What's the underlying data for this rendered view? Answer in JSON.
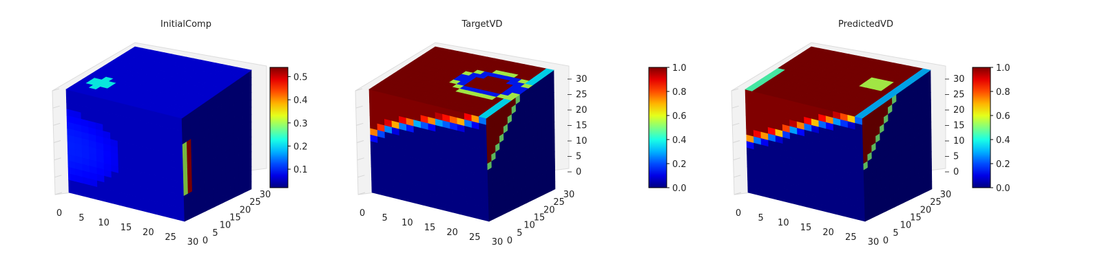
{
  "figure": {
    "background": "#ffffff"
  },
  "chart_data": [
    {
      "type": "heatmap",
      "subtype": "3d-voxel-cube",
      "title": "InitialComp",
      "x_ticks": [
        "0",
        "5",
        "10",
        "15",
        "20",
        "25",
        "30"
      ],
      "y_ticks": [
        "0",
        "5",
        "10",
        "15",
        "20",
        "25",
        "30"
      ],
      "z_ticks": [],
      "xlim": [
        0,
        32
      ],
      "ylim": [
        0,
        32
      ],
      "zlim": [
        0,
        32
      ],
      "grid": true,
      "colormap": "jet",
      "colorbar": {
        "min": 0.02,
        "max": 0.54,
        "ticks": [
          "0.1",
          "0.2",
          "0.3",
          "0.4",
          "0.5"
        ],
        "tick_values": [
          0.1,
          0.2,
          0.3,
          0.4,
          0.5
        ]
      },
      "faces": {
        "front": {
          "base": 0.05,
          "features": [
            {
              "kind": "blob",
              "cx": 0.0,
              "cy": 0.45,
              "rx": 0.45,
              "ry": 0.35,
              "value": 0.1
            }
          ]
        },
        "top": {
          "base": 0.07,
          "features": [
            {
              "kind": "spot",
              "value": 0.22
            }
          ]
        },
        "side": {
          "base": 0.03,
          "features": [
            {
              "kind": "stripe",
              "value": 0.52,
              "z_range": [
                0.25,
                0.72
              ],
              "u_range": [
                0.0,
                0.14
              ]
            }
          ]
        }
      }
    },
    {
      "type": "heatmap",
      "subtype": "3d-voxel-cube",
      "title": "TargetVD",
      "x_ticks": [
        "0",
        "5",
        "10",
        "15",
        "20",
        "25",
        "30"
      ],
      "y_ticks": [
        "0",
        "5",
        "10",
        "15",
        "20",
        "25",
        "30"
      ],
      "z_ticks": [
        "0",
        "5",
        "10",
        "15",
        "20",
        "25",
        "30"
      ],
      "xlim": [
        0,
        32
      ],
      "ylim": [
        0,
        32
      ],
      "zlim": [
        0,
        32
      ],
      "grid": true,
      "colormap": "jet",
      "colorbar": {
        "min": 0.0,
        "max": 1.0,
        "ticks": [
          "0.0",
          "0.2",
          "0.4",
          "0.6",
          "0.8",
          "1.0"
        ],
        "tick_values": [
          0,
          0.2,
          0.4,
          0.6,
          0.8,
          1.0
        ]
      },
      "faces": {
        "front": {
          "base": 0.0,
          "features": [
            {
              "kind": "upper-region",
              "value": 1.0,
              "boundary": [
                0.55,
                0.7,
                0.78,
                0.85,
                0.9,
                1.0
              ]
            }
          ]
        },
        "top": {
          "base": 1.0,
          "features": [
            {
              "kind": "ring",
              "value": 0.15
            }
          ]
        },
        "side": {
          "base": 0.0,
          "features": [
            {
              "kind": "upper-region",
              "value": 1.0
            }
          ]
        }
      }
    },
    {
      "type": "heatmap",
      "subtype": "3d-voxel-cube",
      "title": "PredictedVD",
      "x_ticks": [
        "0",
        "5",
        "10",
        "15",
        "20",
        "25",
        "30"
      ],
      "y_ticks": [
        "0",
        "5",
        "10",
        "15",
        "20",
        "25",
        "30"
      ],
      "z_ticks": [
        "0",
        "5",
        "10",
        "15",
        "20",
        "25",
        "30"
      ],
      "xlim": [
        0,
        32
      ],
      "ylim": [
        0,
        32
      ],
      "zlim": [
        0,
        32
      ],
      "grid": true,
      "colormap": "jet",
      "colorbar": {
        "min": 0.0,
        "max": 1.0,
        "ticks": [
          "0.0",
          "0.2",
          "0.4",
          "0.6",
          "0.8",
          "1.0"
        ],
        "tick_values": [
          0,
          0.2,
          0.4,
          0.6,
          0.8,
          1.0
        ]
      },
      "faces": {
        "front": {
          "base": 0.0,
          "features": [
            {
              "kind": "upper-region",
              "value": 1.0,
              "boundary": [
                0.5,
                0.6,
                0.72,
                0.84,
                0.92,
                1.0
              ]
            }
          ]
        },
        "top": {
          "base": 1.0,
          "features": [
            {
              "kind": "spot",
              "value": 0.55
            }
          ]
        },
        "side": {
          "base": 0.0,
          "features": [
            {
              "kind": "upper-region",
              "value": 1.0
            }
          ]
        }
      }
    }
  ]
}
